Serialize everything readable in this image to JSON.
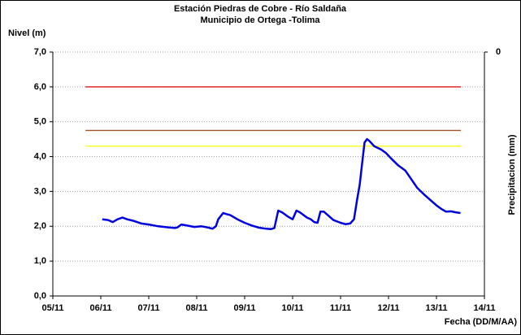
{
  "chart_data": {
    "type": "line",
    "title": "Estación Piedras de Cobre - Río Saldaña",
    "subtitle": "Municipio de Ortega -Tolima",
    "y_label": "Nivel (m)",
    "y2_label": "Precipitacion (mm)",
    "x_label": "Fecha (DD/M/AA)",
    "xlim": [
      5,
      14
    ],
    "xticks": [
      {
        "value": 5,
        "label": "05/11"
      },
      {
        "value": 6,
        "label": "06/11"
      },
      {
        "value": 7,
        "label": "07/11"
      },
      {
        "value": 8,
        "label": "08/11"
      },
      {
        "value": 9,
        "label": "09/11"
      },
      {
        "value": 10,
        "label": "10/11"
      },
      {
        "value": 11,
        "label": "11/11"
      },
      {
        "value": 12,
        "label": "12/11"
      },
      {
        "value": 13,
        "label": "13/11"
      },
      {
        "value": 14,
        "label": "14/11"
      }
    ],
    "ylim": [
      0,
      7
    ],
    "yticks": [
      {
        "value": 0,
        "label": "0,0"
      },
      {
        "value": 1,
        "label": "1,0"
      },
      {
        "value": 2,
        "label": "2,0"
      },
      {
        "value": 3,
        "label": "3,0"
      },
      {
        "value": 4,
        "label": "4,0"
      },
      {
        "value": 5,
        "label": "5,0"
      },
      {
        "value": 6,
        "label": "6,0"
      },
      {
        "value": 7,
        "label": "7,0"
      }
    ],
    "y2ticks": [
      0
    ],
    "y2_inverted": true,
    "grid": true,
    "reference_lines": [
      {
        "value": 6.0,
        "color": "#e00000",
        "xrange": [
          5.68,
          13.51
        ]
      },
      {
        "value": 4.75,
        "color": "#a0522d",
        "xrange": [
          5.68,
          13.51
        ]
      },
      {
        "value": 4.3,
        "color": "#ffff00",
        "xrange": [
          5.68,
          13.51
        ]
      }
    ],
    "series": [
      {
        "color": "#0000e0",
        "x": [
          6.03,
          6.15,
          6.25,
          6.35,
          6.45,
          6.55,
          6.7,
          6.85,
          7.0,
          7.2,
          7.4,
          7.55,
          7.6,
          7.68,
          7.8,
          7.95,
          8.1,
          8.25,
          8.33,
          8.4,
          8.45,
          8.55,
          8.62,
          8.7,
          8.85,
          9.0,
          9.15,
          9.3,
          9.45,
          9.55,
          9.62,
          9.7,
          9.78,
          9.9,
          10.0,
          10.08,
          10.15,
          10.3,
          10.38,
          10.45,
          10.52,
          10.58,
          10.65,
          10.75,
          10.85,
          11.0,
          11.1,
          11.2,
          11.28,
          11.35,
          11.4,
          11.45,
          11.5,
          11.55,
          11.6,
          11.7,
          11.85,
          11.95,
          12.05,
          12.2,
          12.35,
          12.5,
          12.6,
          12.75,
          12.9,
          13.0,
          13.1,
          13.2,
          13.3,
          13.4,
          13.5
        ],
        "values": [
          2.2,
          2.18,
          2.12,
          2.2,
          2.25,
          2.2,
          2.15,
          2.08,
          2.05,
          2.0,
          1.97,
          1.95,
          1.97,
          2.05,
          2.02,
          1.98,
          2.0,
          1.96,
          1.93,
          2.0,
          2.2,
          2.38,
          2.35,
          2.32,
          2.2,
          2.1,
          2.02,
          1.96,
          1.93,
          1.92,
          1.95,
          2.45,
          2.4,
          2.28,
          2.2,
          2.45,
          2.4,
          2.25,
          2.2,
          2.12,
          2.1,
          2.42,
          2.42,
          2.3,
          2.18,
          2.1,
          2.06,
          2.08,
          2.2,
          2.8,
          3.2,
          3.8,
          4.4,
          4.5,
          4.45,
          4.3,
          4.2,
          4.1,
          3.95,
          3.75,
          3.6,
          3.3,
          3.1,
          2.9,
          2.72,
          2.6,
          2.5,
          2.42,
          2.43,
          2.4,
          2.38
        ]
      }
    ]
  }
}
